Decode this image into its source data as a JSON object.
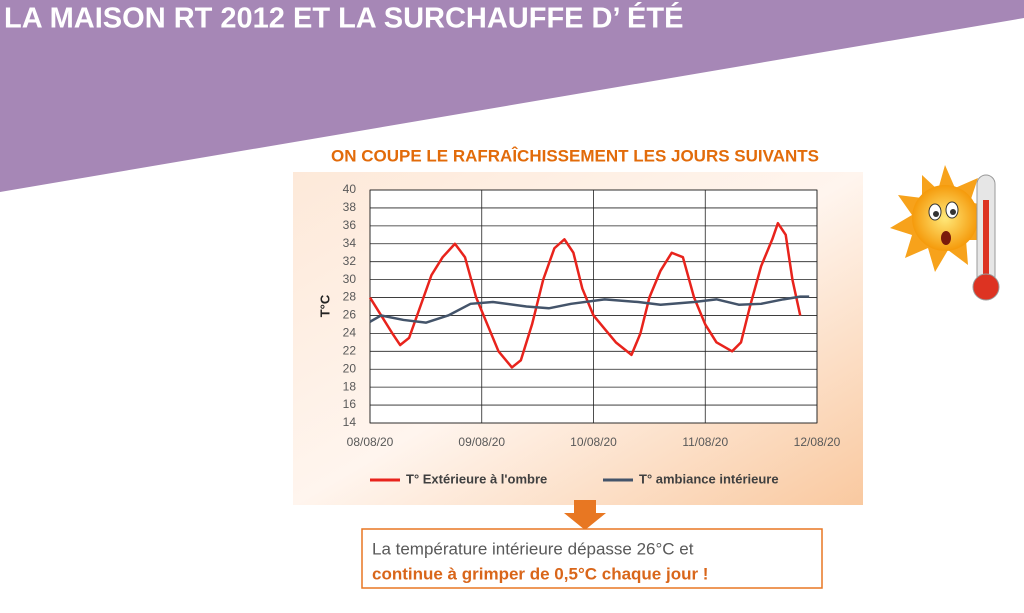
{
  "title": "LA MAISON RT 2012 ET LA SURCHAUFFE D’ ÉTÉ",
  "chart_data": {
    "type": "line",
    "title": "ON COUPE LE RAFRAÎCHISSEMENT LES JOURS SUIVANTS",
    "y_label": "T°C",
    "xlim": [
      0,
      4
    ],
    "xticks": [
      {
        "value": 0,
        "label": "08/08/20"
      },
      {
        "value": 1,
        "label": "09/08/20"
      },
      {
        "value": 2,
        "label": "10/08/20"
      },
      {
        "value": 3,
        "label": "11/08/20"
      },
      {
        "value": 4,
        "label": "12/08/20"
      }
    ],
    "ylim": [
      14,
      40
    ],
    "yticks": [
      14,
      16,
      18,
      20,
      22,
      24,
      26,
      28,
      30,
      32,
      34,
      36,
      38,
      40
    ],
    "grid": true,
    "legend": "bottom",
    "series": [
      {
        "name": "T° Extérieure à l'ombre",
        "color": "#e8231c",
        "x": [
          0,
          0.1,
          0.2,
          0.27,
          0.35,
          0.45,
          0.55,
          0.65,
          0.76,
          0.85,
          0.95,
          1.05,
          1.15,
          1.27,
          1.35,
          1.45,
          1.55,
          1.65,
          1.74,
          1.82,
          1.9,
          2.0,
          2.1,
          2.2,
          2.34,
          2.42,
          2.5,
          2.6,
          2.7,
          2.8,
          2.9,
          3.0,
          3.1,
          3.24,
          3.32,
          3.4,
          3.5,
          3.6,
          3.65,
          3.72,
          3.78,
          3.85
        ],
        "values": [
          28,
          26,
          24,
          22.7,
          23.5,
          27,
          30.5,
          32.5,
          34,
          32.5,
          28,
          25,
          22,
          20.2,
          21,
          25,
          30,
          33.5,
          34.5,
          33,
          29,
          26,
          24.5,
          23,
          21.6,
          24,
          28,
          31,
          33,
          32.5,
          28,
          25,
          23,
          22,
          23,
          27,
          31.5,
          34.5,
          36.3,
          35,
          30,
          26
        ]
      },
      {
        "name": "T° ambiance intérieure",
        "color": "#44546a",
        "x": [
          0,
          0.1,
          0.3,
          0.5,
          0.7,
          0.9,
          1.1,
          1.4,
          1.6,
          1.8,
          2.1,
          2.4,
          2.6,
          2.9,
          3.1,
          3.3,
          3.5,
          3.7,
          3.85,
          3.93
        ],
        "values": [
          25.3,
          26,
          25.5,
          25.2,
          26,
          27.3,
          27.5,
          27,
          26.8,
          27.3,
          27.8,
          27.5,
          27.2,
          27.5,
          27.8,
          27.2,
          27.3,
          27.8,
          28.1,
          28.1
        ]
      }
    ]
  },
  "callout": {
    "line1": "La température intérieure dépasse 26°C et",
    "line2": "continue à grimper de 0,5°C chaque jour !"
  }
}
